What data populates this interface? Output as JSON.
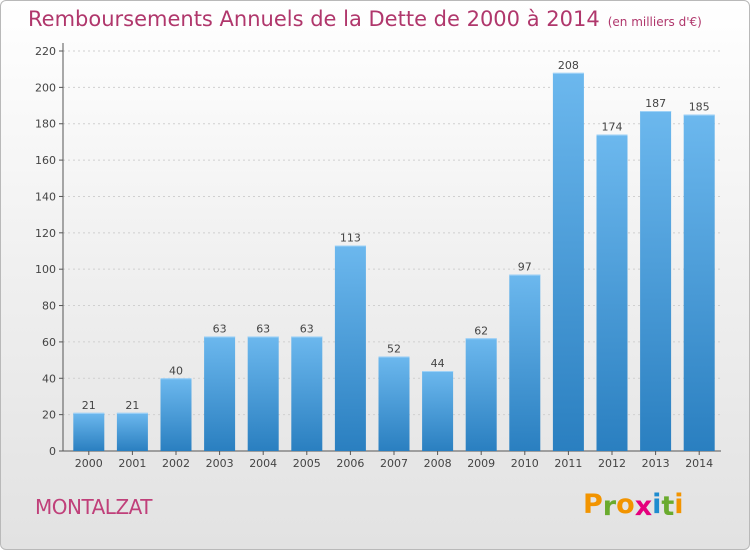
{
  "title": "Remboursements Annuels de la Dette de 2000 à 2014",
  "subtitle": "(en milliers d'€)",
  "commune": "MONTALZAT",
  "logo": {
    "letters": [
      "P",
      "r",
      "o",
      "x",
      "i",
      "t",
      "i"
    ],
    "colors": [
      "#f29400",
      "#6aab2e",
      "#f29400",
      "#e5007d",
      "#1e8ccf",
      "#6aab2e",
      "#f29400"
    ]
  },
  "colors": {
    "bar_light": "#6cb8ee",
    "bar_dark": "#2a7fc0",
    "title": "#b0376c"
  },
  "chart_data": {
    "type": "bar",
    "categories": [
      "2000",
      "2001",
      "2002",
      "2003",
      "2004",
      "2005",
      "2006",
      "2007",
      "2008",
      "2009",
      "2010",
      "2011",
      "2012",
      "2013",
      "2014"
    ],
    "values": [
      21,
      21,
      40,
      63,
      63,
      63,
      113,
      52,
      44,
      62,
      97,
      208,
      174,
      187,
      185
    ],
    "ylim": [
      0,
      220
    ],
    "yticks": [
      0,
      20,
      40,
      60,
      80,
      100,
      120,
      140,
      160,
      180,
      200,
      220
    ],
    "grid": true,
    "xlabel": "",
    "ylabel": ""
  }
}
